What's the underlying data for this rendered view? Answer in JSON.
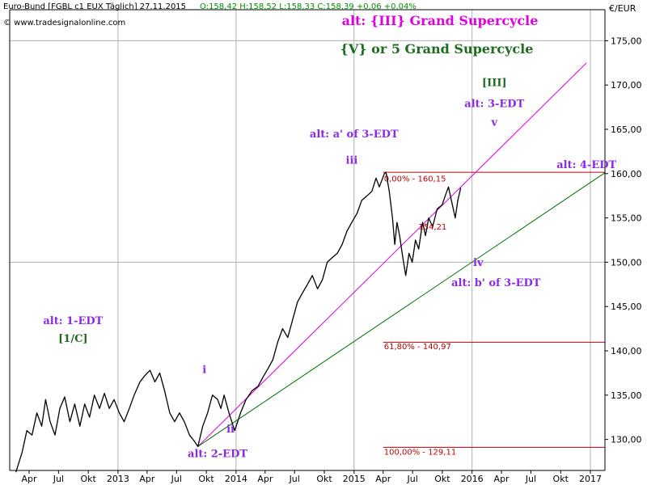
{
  "header": {
    "instrument": "Euro-Bund [FGBL c1 EUX  Täglich] 27.11.2015",
    "ohlc": "O:158,42 H:158,52 L:158,33 C:158,39 +0,06 +0,04%",
    "copyright": "© www.tradesignalonline.com",
    "currency": "€/EUR"
  },
  "titles": {
    "alt": "alt: {III} Grand Supercycle",
    "main": "{V} or 5 Grand Supercycle"
  },
  "colors": {
    "price": "#000000",
    "magenta": "#e000e0",
    "green": "#007000",
    "red": "#c00000",
    "purple": "#8a2be2",
    "darkgreen": "#1f6b1f",
    "grid": "#b0b0b0"
  },
  "chart_data": {
    "type": "line",
    "title": "",
    "ylabel": "€/EUR",
    "ylim": [
      126.5,
      178.5
    ],
    "y_ticks": [
      130,
      135,
      140,
      145,
      150,
      155,
      160,
      165,
      170,
      175
    ],
    "y_tick_labels": [
      "130,00",
      "135,00",
      "140,00",
      "145,00",
      "150,00",
      "155,00",
      "160,00",
      "165,00",
      "170,00",
      "175,00"
    ],
    "xlim": [
      "2012-02-01",
      "2017-02-15"
    ],
    "x_ticks": [
      {
        "date": "2012-04-01",
        "label": "Apr"
      },
      {
        "date": "2012-07-01",
        "label": "Jul"
      },
      {
        "date": "2012-10-01",
        "label": "Okt"
      },
      {
        "date": "2013-01-01",
        "label": "2013"
      },
      {
        "date": "2013-04-01",
        "label": "Apr"
      },
      {
        "date": "2013-07-01",
        "label": "Jul"
      },
      {
        "date": "2013-10-01",
        "label": "Okt"
      },
      {
        "date": "2014-01-01",
        "label": "2014"
      },
      {
        "date": "2014-04-01",
        "label": "Apr"
      },
      {
        "date": "2014-07-01",
        "label": "Jul"
      },
      {
        "date": "2014-10-01",
        "label": "Okt"
      },
      {
        "date": "2015-01-01",
        "label": "2015"
      },
      {
        "date": "2015-04-01",
        "label": "Apr"
      },
      {
        "date": "2015-07-01",
        "label": "Jul"
      },
      {
        "date": "2015-10-01",
        "label": "Okt"
      },
      {
        "date": "2016-01-01",
        "label": "2016"
      },
      {
        "date": "2016-04-01",
        "label": "Apr"
      },
      {
        "date": "2016-07-01",
        "label": "Jul"
      },
      {
        "date": "2016-10-01",
        "label": "Okt"
      },
      {
        "date": "2017-01-01",
        "label": "2017"
      }
    ],
    "grid_x": [
      "2013-01-01",
      "2014-01-01",
      "2015-01-01",
      "2016-01-01",
      "2017-01-01"
    ],
    "grid_y": [
      150,
      175
    ],
    "series": [
      {
        "values": [
          [
            "2012-02-20",
            126.3
          ],
          [
            "2012-03-10",
            128.5
          ],
          [
            "2012-03-25",
            131.0
          ],
          [
            "2012-04-10",
            130.5
          ],
          [
            "2012-04-25",
            133.0
          ],
          [
            "2012-05-10",
            131.5
          ],
          [
            "2012-05-22",
            134.5
          ],
          [
            "2012-06-05",
            132.0
          ],
          [
            "2012-06-20",
            130.5
          ],
          [
            "2012-07-05",
            133.5
          ],
          [
            "2012-07-20",
            134.8
          ],
          [
            "2012-08-05",
            132.0
          ],
          [
            "2012-08-20",
            134.0
          ],
          [
            "2012-09-05",
            131.5
          ],
          [
            "2012-09-20",
            134.0
          ],
          [
            "2012-10-05",
            132.5
          ],
          [
            "2012-10-20",
            135.0
          ],
          [
            "2012-11-05",
            133.5
          ],
          [
            "2012-11-20",
            135.2
          ],
          [
            "2012-12-05",
            133.5
          ],
          [
            "2012-12-20",
            134.5
          ],
          [
            "2013-01-05",
            133.0
          ],
          [
            "2013-01-20",
            132.0
          ],
          [
            "2013-02-05",
            133.5
          ],
          [
            "2013-02-20",
            135.0
          ],
          [
            "2013-03-10",
            136.5
          ],
          [
            "2013-03-25",
            137.2
          ],
          [
            "2013-04-10",
            137.8
          ],
          [
            "2013-04-25",
            136.5
          ],
          [
            "2013-05-10",
            137.5
          ],
          [
            "2013-05-25",
            135.5
          ],
          [
            "2013-06-10",
            133.0
          ],
          [
            "2013-06-25",
            132.0
          ],
          [
            "2013-07-10",
            133.0
          ],
          [
            "2013-07-25",
            132.0
          ],
          [
            "2013-08-10",
            130.5
          ],
          [
            "2013-08-25",
            129.8
          ],
          [
            "2013-09-05",
            129.2
          ],
          [
            "2013-09-20",
            131.5
          ],
          [
            "2013-10-05",
            133.0
          ],
          [
            "2013-10-20",
            135.0
          ],
          [
            "2013-11-05",
            134.5
          ],
          [
            "2013-11-15",
            133.5
          ],
          [
            "2013-11-25",
            135.0
          ],
          [
            "2013-12-10",
            133.0
          ],
          [
            "2013-12-28",
            131.0
          ],
          [
            "2014-01-15",
            133.0
          ],
          [
            "2014-02-01",
            134.5
          ],
          [
            "2014-02-20",
            135.5
          ],
          [
            "2014-03-10",
            136.0
          ],
          [
            "2014-03-25",
            137.0
          ],
          [
            "2014-04-10",
            138.0
          ],
          [
            "2014-04-25",
            139.0
          ],
          [
            "2014-05-10",
            141.0
          ],
          [
            "2014-05-25",
            142.5
          ],
          [
            "2014-06-10",
            141.5
          ],
          [
            "2014-06-25",
            143.5
          ],
          [
            "2014-07-10",
            145.5
          ],
          [
            "2014-07-25",
            146.5
          ],
          [
            "2014-08-10",
            147.5
          ],
          [
            "2014-08-25",
            148.5
          ],
          [
            "2014-09-10",
            147.0
          ],
          [
            "2014-09-25",
            148.0
          ],
          [
            "2014-10-10",
            150.0
          ],
          [
            "2014-10-25",
            150.5
          ],
          [
            "2014-11-10",
            151.0
          ],
          [
            "2014-11-25",
            152.0
          ],
          [
            "2014-12-10",
            153.5
          ],
          [
            "2014-12-25",
            154.5
          ],
          [
            "2015-01-10",
            155.5
          ],
          [
            "2015-01-25",
            157.0
          ],
          [
            "2015-02-10",
            157.5
          ],
          [
            "2015-02-25",
            158.0
          ],
          [
            "2015-03-10",
            159.5
          ],
          [
            "2015-03-20",
            158.5
          ],
          [
            "2015-04-05",
            160.0
          ],
          [
            "2015-04-10",
            160.15
          ],
          [
            "2015-04-20",
            158.0
          ],
          [
            "2015-04-30",
            155.0
          ],
          [
            "2015-05-07",
            152.0
          ],
          [
            "2015-05-14",
            154.5
          ],
          [
            "2015-05-22",
            153.0
          ],
          [
            "2015-06-01",
            150.5
          ],
          [
            "2015-06-10",
            148.5
          ],
          [
            "2015-06-20",
            151.0
          ],
          [
            "2015-06-30",
            150.0
          ],
          [
            "2015-07-10",
            152.5
          ],
          [
            "2015-07-20",
            151.5
          ],
          [
            "2015-08-01",
            154.5
          ],
          [
            "2015-08-10",
            153.0
          ],
          [
            "2015-08-20",
            155.0
          ],
          [
            "2015-09-01",
            154.0
          ],
          [
            "2015-09-15",
            156.0
          ],
          [
            "2015-10-01",
            156.5
          ],
          [
            "2015-10-10",
            157.5
          ],
          [
            "2015-10-20",
            158.5
          ],
          [
            "2015-11-01",
            156.5
          ],
          [
            "2015-11-10",
            155.0
          ],
          [
            "2015-11-18",
            157.0
          ],
          [
            "2015-11-27",
            158.39
          ]
        ]
      }
    ],
    "trend_lines": [
      {
        "from": [
          "2013-09-05",
          129.2
        ],
        "to": [
          "2016-12-20",
          172.5
        ],
        "color": "magenta"
      },
      {
        "from": [
          "2013-09-05",
          129.2
        ],
        "to": [
          "2017-02-15",
          160.1
        ],
        "color": "green"
      }
    ],
    "fib_levels": [
      {
        "value": 160.15,
        "label": "0,00% - 160,15",
        "from": "2015-04-01",
        "label_y": 159.1
      },
      {
        "value": 140.97,
        "label": "61,80% - 140,97",
        "from": "2015-04-01",
        "label_y": 140.2
      },
      {
        "value": 129.11,
        "label": "100,00% - 129,11",
        "from": "2015-04-01",
        "label_y": 128.3
      }
    ],
    "annotations": [
      {
        "id": "alt-1-edt",
        "text": "alt: 1-EDT",
        "at": [
          "2012-08-15",
          143.0
        ],
        "color": "purple"
      },
      {
        "id": "wave-1-c",
        "text": "[1/C]",
        "at": [
          "2012-08-15",
          141.0
        ],
        "color": "darkgreen"
      },
      {
        "id": "wave-i",
        "text": "i",
        "at": [
          "2013-09-25",
          137.5
        ],
        "color": "purple"
      },
      {
        "id": "wave-ii",
        "text": "ii",
        "at": [
          "2013-12-15",
          130.8
        ],
        "color": "purple"
      },
      {
        "id": "alt-2-edt",
        "text": "alt: 2-EDT",
        "at": [
          "2013-11-05",
          128.0
        ],
        "color": "purple"
      },
      {
        "id": "alt-a-of-3-edt",
        "text": "alt: a' of 3-EDT",
        "at": [
          "2015-01-01",
          164.1
        ],
        "color": "purple"
      },
      {
        "id": "wave-iii",
        "text": "iii",
        "at": [
          "2014-12-25",
          161.1
        ],
        "color": "purple"
      },
      {
        "id": "price-154",
        "text": "154,21",
        "at": [
          "2015-09-01",
          153.7
        ],
        "color": "magenta"
      },
      {
        "id": "wave-iv",
        "text": "iv",
        "at": [
          "2016-01-20",
          149.6
        ],
        "color": "purple"
      },
      {
        "id": "alt-b-of-3-edt",
        "text": "alt: b' of 3-EDT",
        "at": [
          "2016-03-15",
          147.3
        ],
        "color": "purple"
      },
      {
        "id": "wave-III",
        "text": "[III]",
        "at": [
          "2016-03-10",
          169.9
        ],
        "color": "darkgreen"
      },
      {
        "id": "alt-3-edt",
        "text": "alt: 3-EDT",
        "at": [
          "2016-03-10",
          167.5
        ],
        "color": "purple"
      },
      {
        "id": "wave-v",
        "text": "v",
        "at": [
          "2016-03-10",
          165.4
        ],
        "color": "purple"
      },
      {
        "id": "alt-4-edt",
        "text": "alt: 4-EDT",
        "at": [
          "2016-12-20",
          160.6
        ],
        "color": "purple"
      }
    ]
  }
}
